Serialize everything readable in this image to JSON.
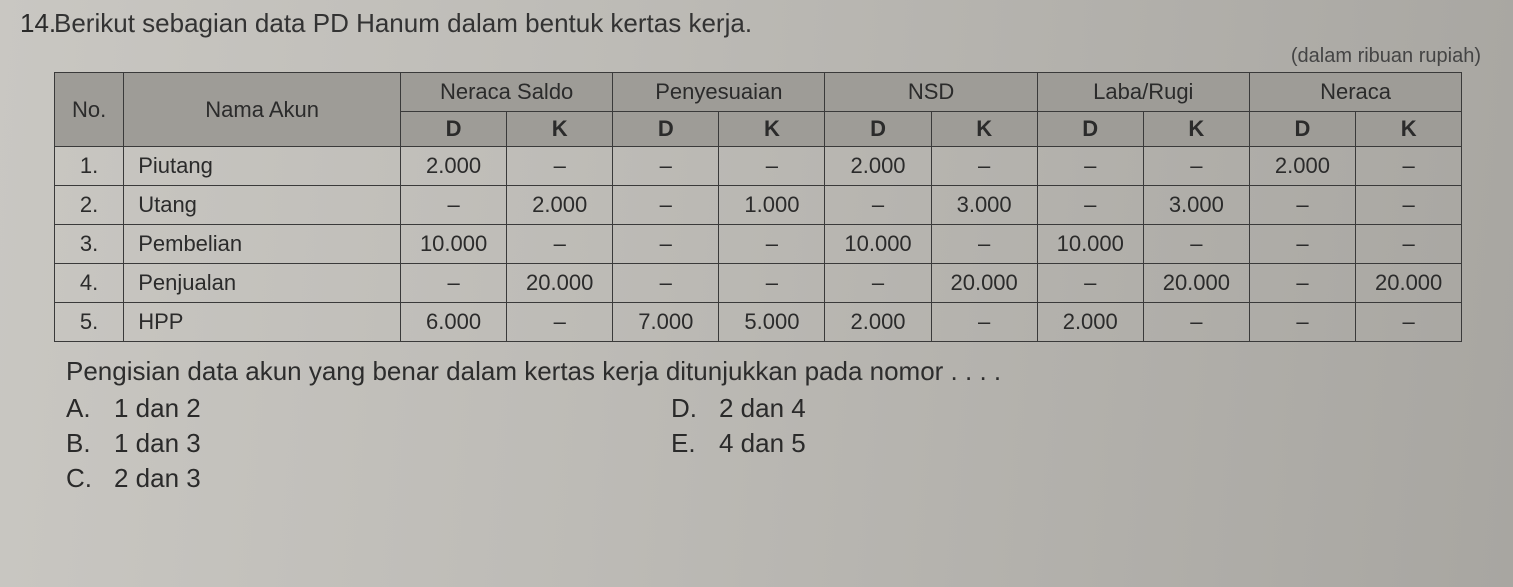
{
  "question": {
    "number": "14.",
    "text": "Berikut sebagian data PD Hanum dalam bentuk kertas kerja.",
    "unit_note": "(dalam ribuan rupiah)",
    "prompt": "Pengisian data akun yang benar dalam kertas kerja ditunjukkan pada nomor . . . .",
    "options": {
      "A": "1 dan 2",
      "B": "1 dan 3",
      "C": "2 dan 3",
      "D": "2 dan 4",
      "E": "4 dan 5"
    }
  },
  "table": {
    "headers": {
      "no": "No.",
      "nama": "Nama Akun",
      "groups": [
        "Neraca Saldo",
        "Penyesuaian",
        "NSD",
        "Laba/Rugi",
        "Neraca"
      ],
      "sub": {
        "D": "D",
        "K": "K"
      }
    },
    "rows": [
      {
        "no": "1.",
        "name": "Piutang",
        "ns_d": "2.000",
        "ns_k": "–",
        "py_d": "–",
        "py_k": "–",
        "nsd_d": "2.000",
        "nsd_k": "–",
        "lr_d": "–",
        "lr_k": "–",
        "nr_d": "2.000",
        "nr_k": "–"
      },
      {
        "no": "2.",
        "name": "Utang",
        "ns_d": "–",
        "ns_k": "2.000",
        "py_d": "–",
        "py_k": "1.000",
        "nsd_d": "–",
        "nsd_k": "3.000",
        "lr_d": "–",
        "lr_k": "3.000",
        "nr_d": "–",
        "nr_k": "–"
      },
      {
        "no": "3.",
        "name": "Pembelian",
        "ns_d": "10.000",
        "ns_k": "–",
        "py_d": "–",
        "py_k": "–",
        "nsd_d": "10.000",
        "nsd_k": "–",
        "lr_d": "10.000",
        "lr_k": "–",
        "nr_d": "–",
        "nr_k": "–"
      },
      {
        "no": "4.",
        "name": "Penjualan",
        "ns_d": "–",
        "ns_k": "20.000",
        "py_d": "–",
        "py_k": "–",
        "nsd_d": "–",
        "nsd_k": "20.000",
        "lr_d": "–",
        "lr_k": "20.000",
        "nr_d": "–",
        "nr_k": "20.000"
      },
      {
        "no": "5.",
        "name": "HPP",
        "ns_d": "6.000",
        "ns_k": "–",
        "py_d": "7.000",
        "py_k": "5.000",
        "nsd_d": "2.000",
        "nsd_k": "–",
        "lr_d": "2.000",
        "lr_k": "–",
        "nr_d": "–",
        "nr_k": "–"
      }
    ]
  },
  "style": {
    "dash": "–",
    "border_color": "#3a3a3a",
    "header_bg": "#9e9c97",
    "page_bg": "#bdbbb6",
    "text_color": "#2a2a2a",
    "font_size_body": 26,
    "font_size_cell": 22
  }
}
